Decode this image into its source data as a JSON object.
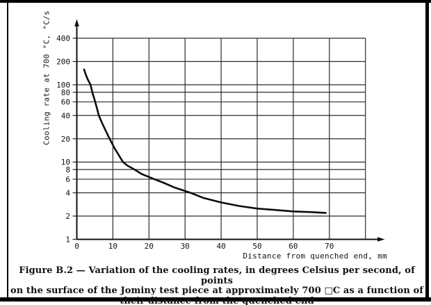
{
  "figure": {
    "caption_lines": [
      "Figure B.2 — Variation of the cooling rates, in degrees Celsius per second, of points",
      "on the surface of the Jominy test piece at approximately 700 □C as a function of",
      "their distance from the quenched end"
    ]
  },
  "chart_data": {
    "type": "line",
    "title": "Figure B.2 — Variation of the cooling rates, in degrees Celsius per second, of points on the surface of the Jominy test piece at approximately 700 □C as a function of their distance from the quenched end",
    "xlabel": "Distance from quenched end, mm",
    "ylabel": "Cooling rate at 700 °C, °C/s",
    "x_scale": "linear",
    "y_scale": "log",
    "xlim": [
      0,
      80
    ],
    "ylim": [
      1,
      400
    ],
    "x_tick_labels": [
      0,
      10,
      20,
      30,
      40,
      50,
      60,
      70
    ],
    "x_gridlines": [
      0,
      10,
      20,
      30,
      40,
      50,
      60,
      70,
      80
    ],
    "y_ticks": [
      1,
      2,
      4,
      6,
      8,
      10,
      20,
      40,
      60,
      80,
      100,
      200,
      400
    ],
    "grid": true,
    "legend": "none",
    "series": [
      {
        "name": "cooling rate at 700 °C",
        "points": [
          [
            2,
            158
          ],
          [
            2.5,
            135
          ],
          [
            3,
            118
          ],
          [
            3.8,
            100
          ],
          [
            4.3,
            80
          ],
          [
            5.1,
            60
          ],
          [
            6.1,
            40
          ],
          [
            7,
            32
          ],
          [
            8,
            25.5
          ],
          [
            9.1,
            20
          ],
          [
            10.5,
            15
          ],
          [
            12.8,
            10
          ],
          [
            14,
            9
          ],
          [
            16,
            8
          ],
          [
            18,
            7
          ],
          [
            21.5,
            6
          ],
          [
            24,
            5.4
          ],
          [
            27,
            4.7
          ],
          [
            31.5,
            4
          ],
          [
            35,
            3.45
          ],
          [
            40,
            3.0
          ],
          [
            45,
            2.7
          ],
          [
            50,
            2.5
          ],
          [
            55,
            2.4
          ],
          [
            60,
            2.3
          ],
          [
            65,
            2.25
          ],
          [
            69,
            2.2
          ]
        ]
      }
    ]
  },
  "colors": {
    "ink": "#111111",
    "grid": "#2b2b2b",
    "curve": "#0d0d0d",
    "background": "#ffffff",
    "frame": "#000000"
  }
}
